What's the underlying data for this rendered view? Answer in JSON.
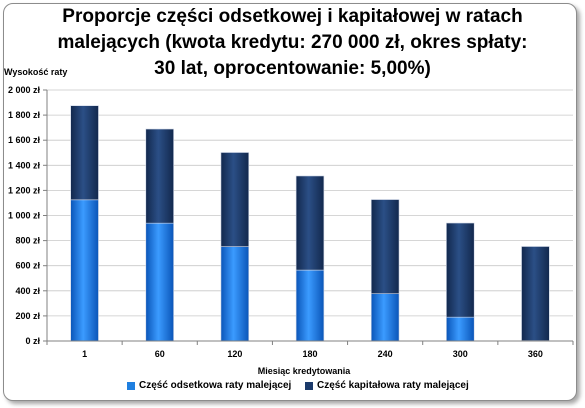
{
  "chart_data": {
    "type": "bar",
    "stacked": true,
    "title_lines": [
      "Proporcje części odsetkowej i kapitałowej w ratach",
      "malejących (kwota kredytu: 270 000 zł, okres spłaty:",
      "30 lat, oprocentowanie: 5,00%)"
    ],
    "xlabel": "Miesiąc kredytowania",
    "ylabel": "Wysokość raty",
    "ylim": [
      0,
      2000
    ],
    "yticks": [
      "0 zł",
      "200 zł",
      "400 zł",
      "600 zł",
      "800 zł",
      "1 000 zł",
      "1 200 zł",
      "1 400 zł",
      "1 600 zł",
      "1 800 zł",
      "2 000 zł"
    ],
    "grid": true,
    "legend_position": "bottom",
    "categories": [
      "1",
      "60",
      "120",
      "180",
      "240",
      "300",
      "360"
    ],
    "series": [
      {
        "name": "Część odsetkowa raty malejącej",
        "color": "#1f7fe0",
        "values": [
          1125,
          939,
          752,
          565,
          377,
          190,
          3
        ]
      },
      {
        "name": "Część kapitałowa raty malejącej",
        "color": "#1b3a6b",
        "values": [
          750,
          750,
          750,
          750,
          750,
          750,
          750
        ]
      }
    ]
  }
}
